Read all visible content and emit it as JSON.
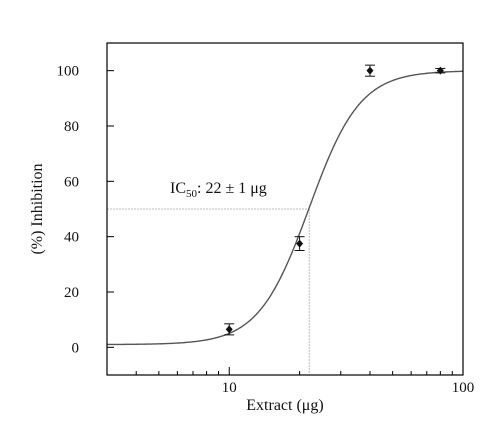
{
  "colors": {
    "axis": "#000000",
    "curve": "#555555",
    "marker": "#111111",
    "guide": "#bdbdbd"
  },
  "chart_data": {
    "type": "scatter",
    "xlabel": "Extract (μg)",
    "ylabel": "(%) Inhibition",
    "x_scale": "log",
    "xlim": [
      3,
      100
    ],
    "ylim": [
      -10,
      110
    ],
    "x_ticks": [
      {
        "value": 10,
        "label": "10"
      },
      {
        "value": 100,
        "label": "100"
      }
    ],
    "x_minor_ticks": [
      3,
      4,
      5,
      6,
      7,
      8,
      9,
      20,
      30,
      40,
      50,
      60,
      70,
      80,
      90
    ],
    "y_ticks": [
      {
        "value": 0,
        "label": "0"
      },
      {
        "value": 20,
        "label": "20"
      },
      {
        "value": 40,
        "label": "40"
      },
      {
        "value": 60,
        "label": "60"
      },
      {
        "value": 80,
        "label": "80"
      },
      {
        "value": 100,
        "label": "100"
      }
    ],
    "grid": false,
    "series": [
      {
        "points": [
          {
            "x": 10,
            "y": 6.5,
            "err": 2
          },
          {
            "x": 20,
            "y": 37.5,
            "err": 2.5
          },
          {
            "x": 40,
            "y": 100,
            "err": 2
          },
          {
            "x": 80,
            "y": 100,
            "err": 0.8
          }
        ]
      }
    ],
    "fit_curve": {
      "model": "sigmoid",
      "ic50": 22,
      "hill": 4,
      "bottom": 1,
      "top": 100
    },
    "annotation": {
      "prefix": "IC",
      "subscript": "50",
      "value_text": ": 22 ± 1 μg",
      "x": 22,
      "y": 50
    }
  }
}
